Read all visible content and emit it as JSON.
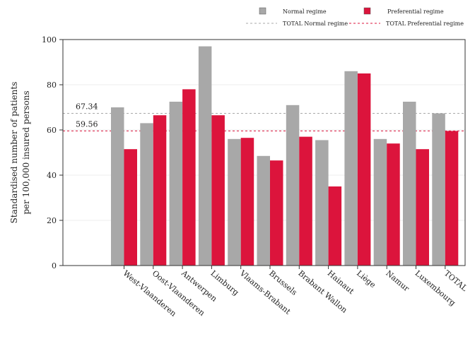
{
  "chart_data": {
    "type": "bar",
    "title": "",
    "xlabel": "",
    "ylabel": [
      "Standardised number of patients",
      "per 100,000 insured persons"
    ],
    "ylim": [
      0,
      100
    ],
    "yticks": [
      0,
      20,
      40,
      60,
      80,
      100
    ],
    "grid": true,
    "legend_position": "top-right",
    "categories": [
      "West-Vlaanderen",
      "Oost-Vlaanderen",
      "Antwerpen",
      "Limburg",
      "Vlaams-Brabant",
      "Brussels",
      "Brabant Wallon",
      "Hainaut",
      "Liège",
      "Namur",
      "Luxembourg",
      "TOTAL"
    ],
    "series": [
      {
        "name": "Normal regime",
        "color": "#a8a8a8",
        "values": [
          70,
          63,
          72.5,
          97,
          56,
          48.5,
          71,
          55.5,
          86,
          56,
          72.5,
          67.34
        ]
      },
      {
        "name": "Preferential regime",
        "color": "#dc143c",
        "values": [
          51.5,
          66.5,
          78,
          66.5,
          56.5,
          46.5,
          57,
          35,
          85,
          54,
          51.5,
          59.56
        ]
      }
    ],
    "reference_lines": [
      {
        "name": "TOTAL Normal regime",
        "value": 67.34,
        "label": "67.34",
        "color": "#a8a8a8"
      },
      {
        "name": "TOTAL Preferential regime",
        "value": 59.56,
        "label": "59.56",
        "color": "#dc143c"
      }
    ]
  }
}
